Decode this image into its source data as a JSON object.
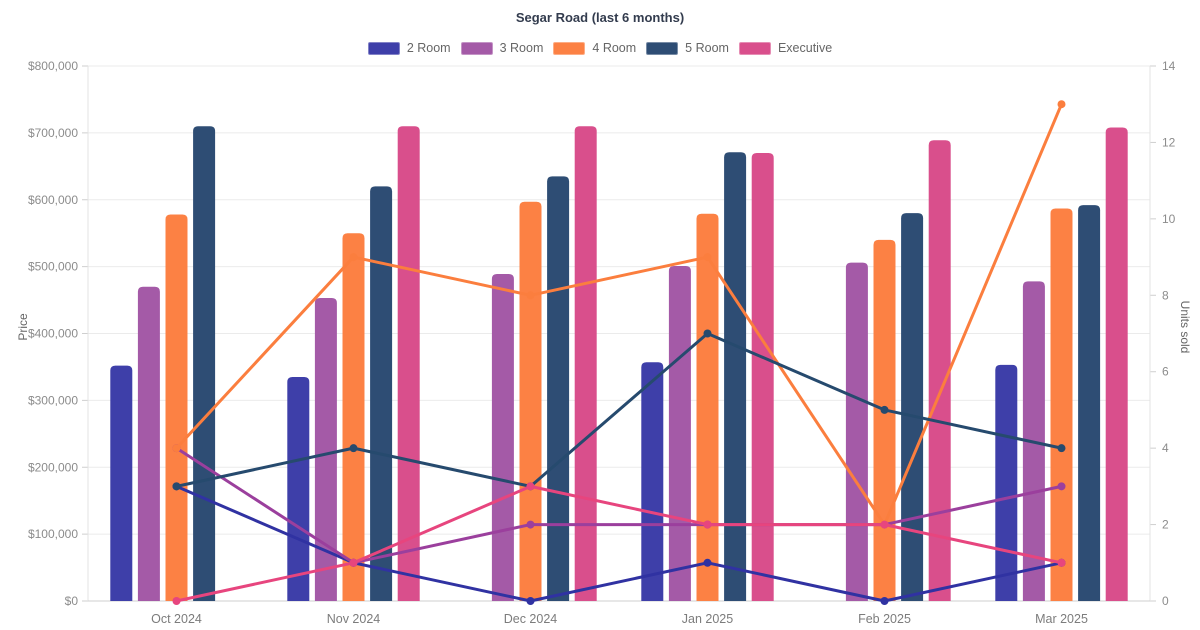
{
  "title": "Segar Road (last 6 months)",
  "chart_data": {
    "type": "bar+line",
    "categories": [
      "Oct 2024",
      "Nov 2024",
      "Dec 2024",
      "Jan 2025",
      "Feb 2025",
      "Mar 2025"
    ],
    "series": [
      {
        "name": "2 Room",
        "bar_color": "#3e3fa9",
        "line_color": "#3032a2",
        "prices": [
          352000,
          335000,
          null,
          357000,
          null,
          353000
        ],
        "units": [
          3,
          1,
          0,
          1,
          0,
          1
        ]
      },
      {
        "name": "3 Room",
        "bar_color": "#a45aa7",
        "line_color": "#9b3f9d",
        "prices": [
          470000,
          453000,
          489000,
          501000,
          506000,
          478000
        ],
        "units": [
          4,
          1,
          2,
          2,
          2,
          3
        ]
      },
      {
        "name": "4 Room",
        "bar_color": "#fc8144",
        "line_color": "#fb7e3e",
        "prices": [
          578000,
          550000,
          597000,
          579000,
          540000,
          587000
        ],
        "units": [
          4,
          9,
          8,
          9,
          2,
          13
        ]
      },
      {
        "name": "5 Room",
        "bar_color": "#2e4d74",
        "line_color": "#264a6e",
        "prices": [
          710000,
          620000,
          635000,
          671000,
          580000,
          592000
        ],
        "units": [
          3,
          4,
          3,
          7,
          5,
          4
        ]
      },
      {
        "name": "Executive",
        "bar_color": "#d94f8c",
        "line_color": "#e7457e",
        "prices": [
          null,
          710000,
          710000,
          670000,
          689000,
          708000
        ],
        "units": [
          0,
          1,
          3,
          2,
          2,
          1
        ]
      }
    ],
    "xlabel": "",
    "ylabel_left": "Price",
    "ylabel_right": "Units sold",
    "y_left": {
      "min": 0,
      "max": 800000,
      "tick_step": 100000,
      "tick_labels": [
        "$0",
        "$100,000",
        "$200,000",
        "$300,000",
        "$400,000",
        "$500,000",
        "$600,000",
        "$700,000",
        "$800,000"
      ]
    },
    "y_right": {
      "min": 0,
      "max": 14,
      "tick_step": 2,
      "tick_labels": [
        "0",
        "2",
        "4",
        "6",
        "8",
        "10",
        "12",
        "14"
      ]
    },
    "grid": true,
    "legend_position": "top"
  },
  "colors": {
    "background": "#ffffff",
    "grid": "#ebebeb",
    "plot_border": "#e3e3e3",
    "axis_line": "#cfcfcf",
    "tick_text": "#8c8c8c",
    "month_text": "#7c7c7c",
    "title_text": "#333c4e",
    "legend_text": "#666666"
  }
}
